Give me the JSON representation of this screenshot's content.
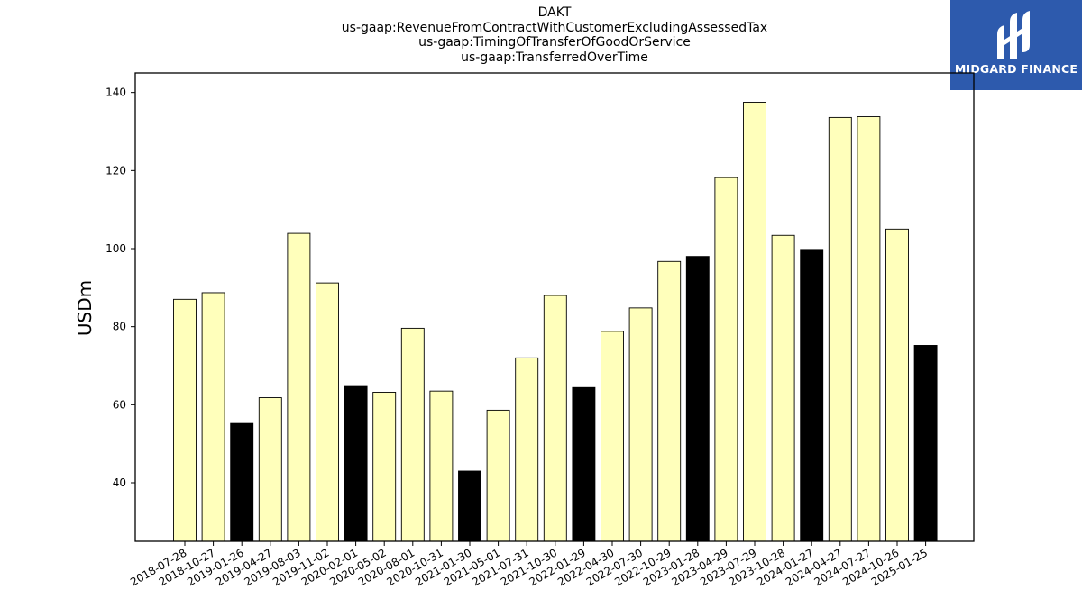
{
  "chart_data": {
    "type": "bar",
    "title_lines": [
      "DAKT",
      "us-gaap:RevenueFromContractWithCustomerExcludingAssessedTax",
      "us-gaap:TimingOfTransferOfGoodOrService",
      "us-gaap:TransferredOverTime"
    ],
    "xlabel": "",
    "ylabel": "USDm",
    "ylim": [
      25,
      145
    ],
    "yticks": [
      40,
      60,
      80,
      100,
      120,
      140
    ],
    "grid": false,
    "categories": [
      "2018-07-28",
      "2018-10-27",
      "2019-01-26",
      "2019-04-27",
      "2019-08-03",
      "2019-11-02",
      "2020-02-01",
      "2020-05-02",
      "2020-08-01",
      "2020-10-31",
      "2021-01-30",
      "2021-05-01",
      "2021-07-31",
      "2021-10-30",
      "2022-01-29",
      "2022-04-30",
      "2022-07-30",
      "2022-10-29",
      "2023-01-28",
      "2023-04-29",
      "2023-07-29",
      "2023-10-28",
      "2024-01-27",
      "2024-04-27",
      "2024-07-27",
      "2024-10-26",
      "2025-01-25"
    ],
    "values": [
      87.0,
      88.7,
      55.2,
      61.8,
      103.9,
      91.2,
      64.9,
      63.2,
      79.6,
      63.5,
      43.0,
      58.6,
      72.0,
      88.0,
      64.4,
      78.8,
      84.8,
      96.7,
      98.0,
      118.2,
      137.5,
      103.4,
      99.8,
      133.6,
      133.8,
      105.0,
      75.2
    ],
    "highlighted": [
      false,
      false,
      true,
      false,
      false,
      false,
      true,
      false,
      false,
      false,
      true,
      false,
      false,
      false,
      true,
      false,
      false,
      false,
      true,
      false,
      false,
      false,
      true,
      false,
      false,
      false,
      true
    ],
    "colors": {
      "default_bar": "#ffffbb",
      "highlight_bar": "#000000",
      "edge": "#000000"
    }
  },
  "logo": {
    "text": "MIDGARD FINANCE",
    "background": "#2d5aad",
    "icon_name": "midgard-logo-icon"
  }
}
